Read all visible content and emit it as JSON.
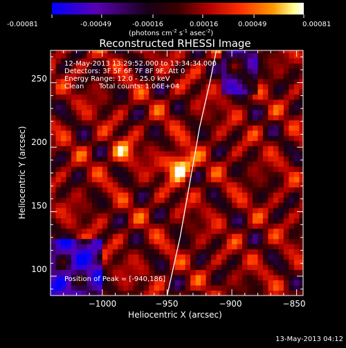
{
  "footer_timestamp": "13-May-2013 04:12",
  "colorbar": {
    "ticks": [
      "-0.00081",
      "-0.00049",
      "-0.00016",
      "0.00016",
      "0.00049",
      "0.00081"
    ],
    "units_main": "(photons cm",
    "units_exp1": "-2",
    "units_mid1": " s",
    "units_exp2": "-1",
    "units_mid2": " asec",
    "units_exp3": "-2",
    "units_end": ")"
  },
  "chart_data": {
    "type": "heatmap",
    "title": "Reconstructed RHESSI Image",
    "xlabel": "Heliocentric X (arcsec)",
    "ylabel": "Heliocentric Y (arcsec)",
    "xlim": [
      -1040,
      -845
    ],
    "ylim": [
      85,
      275
    ],
    "x_ticks": [
      -1000,
      -950,
      -900,
      -850
    ],
    "y_ticks": [
      100,
      150,
      200,
      250
    ],
    "x_tick_labels": [
      "−1000",
      "−950",
      "−900",
      "−850"
    ],
    "y_tick_labels": [
      "100",
      "150",
      "200",
      "250"
    ],
    "colorbar_range": [
      -0.00081,
      0.00081
    ],
    "colormap": [
      "#0000ff",
      "#6a00a8",
      "#000000",
      "#8b0000",
      "#ff2a00",
      "#ff8c00",
      "#ffff80",
      "#ffffff"
    ],
    "annotations": [
      "12-May-2013 13:29:52.000 to 13:34:34.000",
      "Detectors: 3F 5F 6F 7F 8F 9F, Att 0",
      "Energy Range: 12.0 - 25.0 keV",
      "Clean",
      "Total counts: 1.06E+04"
    ],
    "peak_label": "Position of Peak = [-940,186]",
    "peak": {
      "x": -940,
      "y": 186
    },
    "secondary_source": {
      "x": -985,
      "y": 196
    },
    "limb_curve": [
      [
        -950,
        85
      ],
      [
        -940,
        130
      ],
      [
        -932,
        175
      ],
      [
        -925,
        215
      ],
      [
        -917,
        250
      ],
      [
        -912,
        275
      ]
    ]
  }
}
